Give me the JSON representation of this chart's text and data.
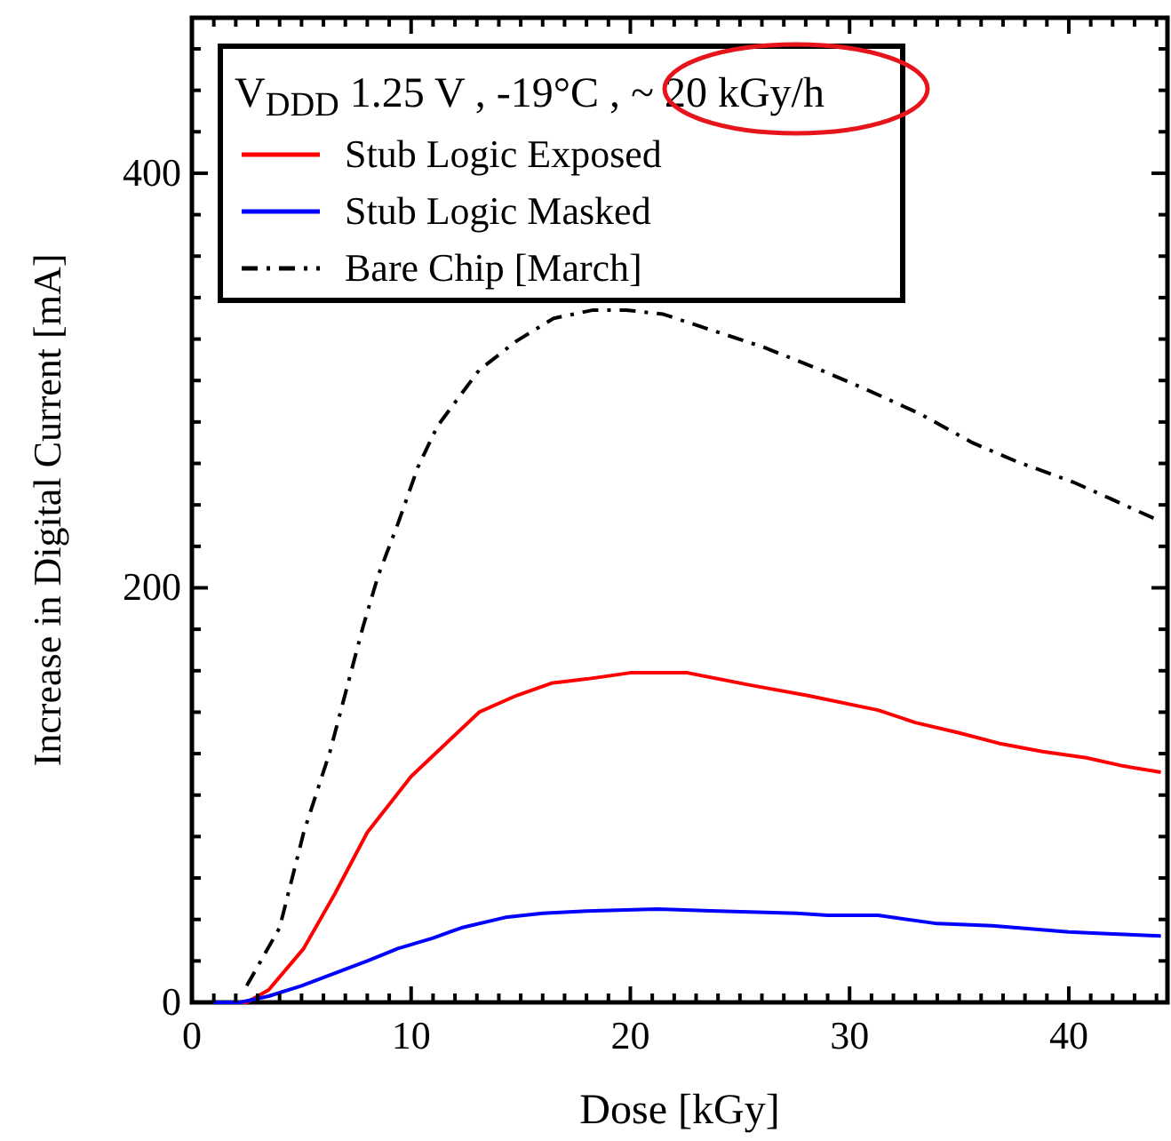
{
  "chart_data": {
    "type": "line",
    "xlabel": "Dose [kGy]",
    "ylabel": "Increase in Digital Current [mA]",
    "legend_title": "V$_{DDD}$ 1.25 V , -19°C , ~ 20 kGy/h",
    "legend": "top left",
    "grid": false,
    "marker": "none",
    "xlim": [
      0,
      44.5
    ],
    "ylim": [
      0,
      475
    ],
    "xticks": [
      0,
      {
        "value": 1,
        "label": null
      },
      {
        "value": 2,
        "label": null
      },
      {
        "value": 3,
        "label": null
      },
      {
        "value": 4,
        "label": null
      },
      {
        "value": 5,
        "label": null
      },
      {
        "value": 6,
        "label": null
      },
      {
        "value": 7,
        "label": null
      },
      {
        "value": 8,
        "label": null
      },
      {
        "value": 9,
        "label": null
      },
      10,
      {
        "value": 11,
        "label": null
      },
      {
        "value": 12,
        "label": null
      },
      {
        "value": 13,
        "label": null
      },
      {
        "value": 14,
        "label": null
      },
      {
        "value": 15,
        "label": null
      },
      {
        "value": 16,
        "label": null
      },
      {
        "value": 17,
        "label": null
      },
      {
        "value": 18,
        "label": null
      },
      {
        "value": 19,
        "label": null
      },
      20,
      {
        "value": 21,
        "label": null
      },
      {
        "value": 22,
        "label": null
      },
      {
        "value": 23,
        "label": null
      },
      {
        "value": 24,
        "label": null
      },
      {
        "value": 25,
        "label": null
      },
      {
        "value": 26,
        "label": null
      },
      {
        "value": 27,
        "label": null
      },
      {
        "value": 28,
        "label": null
      },
      {
        "value": 29,
        "label": null
      },
      30,
      {
        "value": 31,
        "label": null
      },
      {
        "value": 32,
        "label": null
      },
      {
        "value": 33,
        "label": null
      },
      {
        "value": 34,
        "label": null
      },
      {
        "value": 35,
        "label": null
      },
      {
        "value": 36,
        "label": null
      },
      {
        "value": 37,
        "label": null
      },
      {
        "value": 38,
        "label": null
      },
      {
        "value": 39,
        "label": null
      },
      40,
      {
        "value": 41,
        "label": null
      },
      {
        "value": 42,
        "label": null
      },
      {
        "value": 43,
        "label": null
      },
      {
        "value": 44,
        "label": null
      }
    ],
    "yticks": [
      0,
      {
        "value": 20,
        "label": null
      },
      {
        "value": 40,
        "label": null
      },
      {
        "value": 60,
        "label": null
      },
      {
        "value": 80,
        "label": null
      },
      {
        "value": 100,
        "label": null
      },
      {
        "value": 120,
        "label": null
      },
      {
        "value": 140,
        "label": null
      },
      {
        "value": 160,
        "label": null
      },
      {
        "value": 180,
        "label": null
      },
      200,
      {
        "value": 220,
        "label": null
      },
      {
        "value": 240,
        "label": null
      },
      {
        "value": 260,
        "label": null
      },
      {
        "value": 280,
        "label": null
      },
      {
        "value": 300,
        "label": null
      },
      {
        "value": 320,
        "label": null
      },
      {
        "value": 340,
        "label": null
      },
      {
        "value": 360,
        "label": null
      },
      {
        "value": 380,
        "label": null
      },
      400,
      {
        "value": 420,
        "label": null
      },
      {
        "value": 440,
        "label": null
      },
      {
        "value": 460,
        "label": null
      }
    ],
    "series": [
      {
        "name": "Stub Logic Exposed",
        "color": "#ff0000",
        "line_style": "solid",
        "x": [
          1,
          2.5,
          3.5,
          5.1,
          6.5,
          8,
          10,
          11.8,
          13.1,
          14.8,
          16.4,
          18,
          20,
          22.6,
          25.5,
          28.1,
          31.3,
          33,
          35,
          36.8,
          38.8,
          40.8,
          42.5,
          44.2
        ],
        "values": [
          0,
          0,
          6,
          26,
          52,
          82,
          109,
          127,
          140,
          148,
          154,
          156,
          159,
          159,
          153,
          148,
          141,
          135,
          130,
          125,
          121,
          118,
          114,
          111
        ]
      },
      {
        "name": "Stub Logic Masked",
        "color": "#0000ff",
        "line_style": "solid",
        "x": [
          1,
          2.2,
          3.5,
          5,
          6.5,
          8,
          9.4,
          11,
          12.3,
          14.3,
          16,
          18,
          21.2,
          24,
          27.6,
          29,
          31.3,
          34,
          36.5,
          40,
          42,
          44.2
        ],
        "values": [
          0,
          0,
          3,
          8,
          14,
          20,
          26,
          31,
          36,
          41,
          43,
          44,
          45,
          44,
          43,
          42,
          42,
          38,
          37,
          34,
          33,
          32
        ]
      },
      {
        "name": "Bare Chip [March]",
        "color": "#000000",
        "line_style": "dashdot",
        "x": [
          2.5,
          4,
          5.1,
          6.3,
          7.8,
          8.5,
          9.4,
          10.3,
          11.2,
          13.1,
          14.8,
          16.5,
          18.3,
          19.8,
          21.5,
          23.8,
          26.1,
          28.7,
          30.7,
          33.2,
          35.6,
          37.6,
          40.2,
          41.9,
          44.2
        ],
        "values": [
          8,
          36,
          82,
          121,
          181,
          206,
          231,
          258,
          278,
          305,
          319,
          330,
          334,
          334,
          332,
          324,
          316,
          305,
          296,
          284,
          270,
          261,
          251,
          243,
          232
        ]
      }
    ]
  }
}
